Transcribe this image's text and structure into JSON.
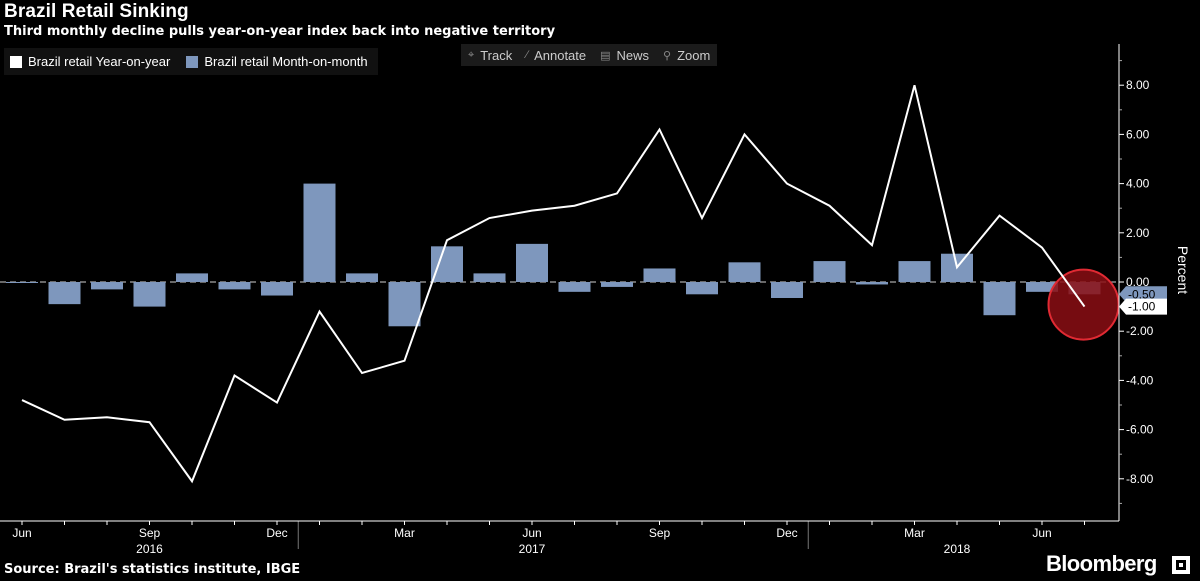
{
  "header": {
    "title": "Brazil Retail Sinking",
    "subtitle": "Third monthly decline pulls year-on-year index back into negative territory"
  },
  "legend": {
    "items": [
      {
        "label": "Brazil retail Year-on-year",
        "color": "#ffffff"
      },
      {
        "label": "Brazil retail Month-on-month",
        "color": "#7e97bd"
      }
    ]
  },
  "toolbar": {
    "track": "Track",
    "annotate": "Annotate",
    "news": "News",
    "zoom": "Zoom"
  },
  "footer": {
    "source": "Source: Brazil's statistics institute, IBGE",
    "brand": "Bloomberg"
  },
  "chart_data": {
    "type": "bar",
    "title": "Brazil Retail Sinking",
    "ylabel": "Percent",
    "ylim": [
      -10,
      9.5
    ],
    "y_ticks": [
      8,
      6,
      4,
      2,
      0,
      -2,
      -4,
      -6,
      -8
    ],
    "y_tick_labels": [
      "8.00",
      "6.00",
      "4.00",
      "2.00",
      "0.00",
      "-2.00",
      "-4.00",
      "-6.00",
      "-8.00"
    ],
    "categories": [
      "2016-06",
      "2016-07",
      "2016-08",
      "2016-09",
      "2016-10",
      "2016-11",
      "2016-12",
      "2017-01",
      "2017-02",
      "2017-03",
      "2017-04",
      "2017-05",
      "2017-06",
      "2017-07",
      "2017-08",
      "2017-09",
      "2017-10",
      "2017-11",
      "2017-12",
      "2018-01",
      "2018-02",
      "2018-03",
      "2018-04",
      "2018-05",
      "2018-06",
      "2018-07"
    ],
    "x_tick_labels": [
      {
        "index": 0,
        "label": "Jun"
      },
      {
        "index": 3,
        "label": "Sep"
      },
      {
        "index": 6,
        "label": "Dec"
      },
      {
        "index": 9,
        "label": "Mar"
      },
      {
        "index": 12,
        "label": "Jun"
      },
      {
        "index": 15,
        "label": "Sep"
      },
      {
        "index": 18,
        "label": "Dec"
      },
      {
        "index": 21,
        "label": "Mar"
      },
      {
        "index": 24,
        "label": "Jun"
      }
    ],
    "year_labels": [
      {
        "index": 3,
        "label": "2016"
      },
      {
        "index": 12,
        "label": "2017"
      },
      {
        "index": 22,
        "label": "2018"
      }
    ],
    "year_dividers": [
      6.5,
      18.5
    ],
    "series": [
      {
        "name": "Brazil retail Year-on-year",
        "kind": "line",
        "color": "#ffffff",
        "values": [
          -4.8,
          -5.6,
          -5.5,
          -5.7,
          -8.1,
          -3.8,
          -4.9,
          -1.2,
          -3.7,
          -3.2,
          1.7,
          2.6,
          2.9,
          3.1,
          3.6,
          6.2,
          2.6,
          6.0,
          4.0,
          3.1,
          1.5,
          8.0,
          0.6,
          2.7,
          1.4,
          -1.0
        ],
        "last_value_label": "-1.00"
      },
      {
        "name": "Brazil retail Month-on-month",
        "kind": "bar",
        "color": "#7e97bd",
        "values": [
          0.0,
          -0.9,
          -0.3,
          -1.0,
          0.35,
          -0.3,
          -0.55,
          4.0,
          0.35,
          -1.8,
          1.45,
          0.35,
          1.55,
          -0.4,
          -0.2,
          0.55,
          -0.5,
          0.8,
          -0.65,
          0.85,
          -0.1,
          0.85,
          1.15,
          -1.35,
          -0.4,
          -0.5
        ],
        "last_value_label": "-0.50"
      }
    ],
    "highlight": {
      "index": 25,
      "color": "#8b0e14"
    }
  }
}
